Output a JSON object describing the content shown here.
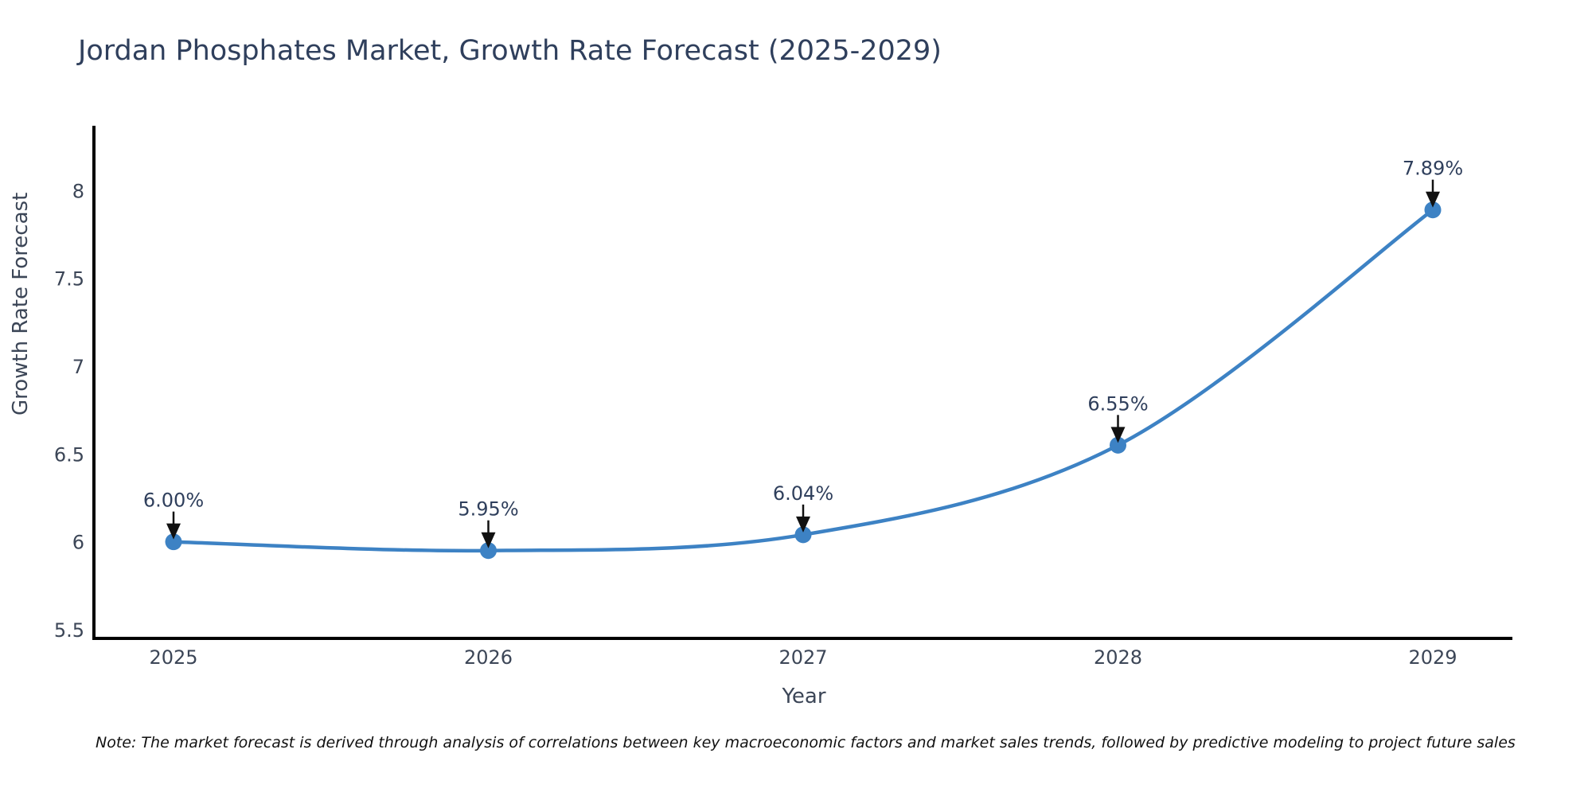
{
  "title": "Jordan Phosphates Market, Growth Rate Forecast (2025-2029)",
  "note": "Note: The market forecast is derived through analysis of correlations between key macroeconomic factors and market sales trends, followed by predictive modeling to project future sales",
  "chart_data": {
    "type": "line",
    "title": "Jordan Phosphates Market, Growth Rate Forecast (2025-2029)",
    "xlabel": "Year",
    "ylabel": "Growth Rate Forecast",
    "categories": [
      "2025",
      "2026",
      "2027",
      "2028",
      "2029"
    ],
    "values": [
      6.0,
      5.95,
      6.04,
      6.55,
      7.89
    ],
    "point_labels": [
      "6.00%",
      "5.95%",
      "6.04%",
      "6.55%",
      "7.89%"
    ],
    "y_ticks": [
      5.5,
      6,
      6.5,
      7,
      7.5,
      8
    ],
    "ylim": [
      5.45,
      8.36
    ],
    "grid": false,
    "legend": false,
    "annotations": "each point labeled with percent value and a downward black arrow",
    "colors": {
      "line": "#3d82c4",
      "marker": "#3d82c4",
      "axis": "#000000",
      "title_text": "#2f3f5c",
      "tick_text": "#3c4657",
      "annotation_text": "#2f3f5c",
      "arrow": "#111111",
      "note_text": "#111111",
      "background": "#ffffff"
    }
  }
}
